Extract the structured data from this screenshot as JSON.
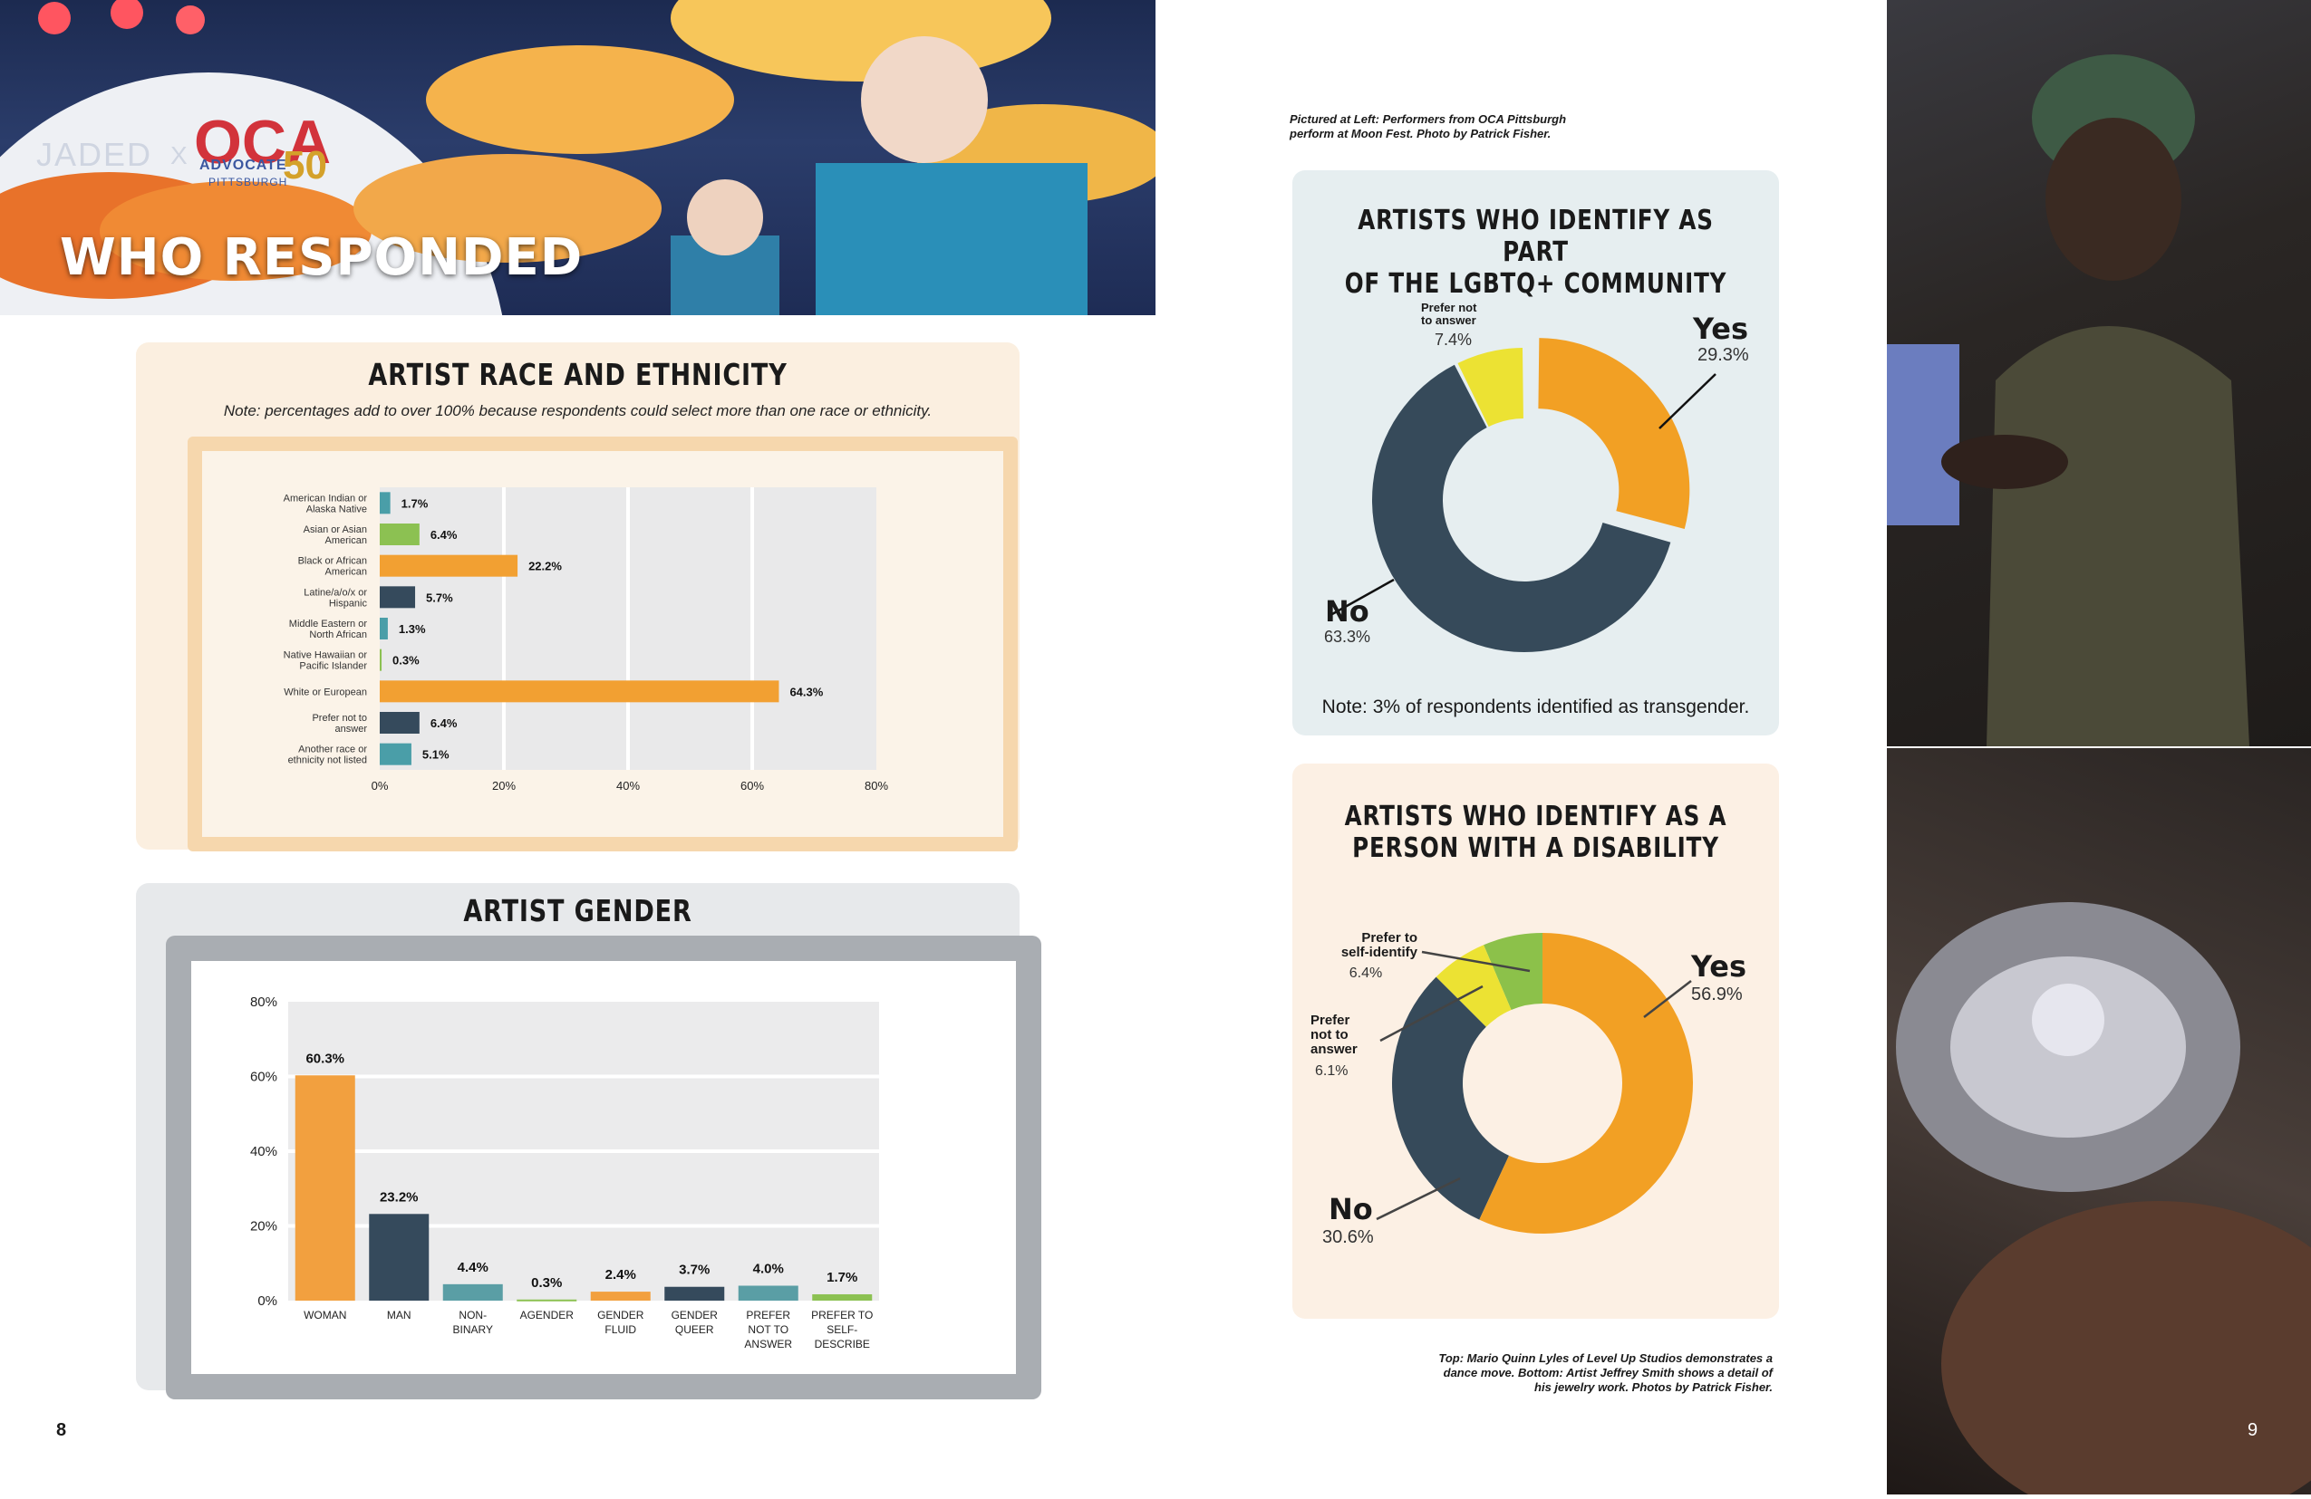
{
  "hero": {
    "title": "WHO RESPONDED",
    "logo_jaded": "JADED",
    "logo_x": "X",
    "logo_oca": "OCA",
    "logo_advocate": "ADVOCATE",
    "logo_pittsburgh": "PITTSBURGH",
    "logo_50": "50"
  },
  "race": {
    "title": "ARTIST RACE AND ETHNICITY",
    "note": "Note: percentages add to over 100% because respondents could select more than one race or ethnicity.",
    "chart_data": {
      "type": "bar",
      "orientation": "horizontal",
      "categories": [
        [
          "American Indian or",
          "Alaska Native"
        ],
        [
          "Asian or Asian",
          "American"
        ],
        [
          "Black or African",
          "American"
        ],
        [
          "Latine/a/o/x or",
          "Hispanic"
        ],
        [
          "Middle Eastern or",
          "North African"
        ],
        [
          "Native Hawaiian or",
          "Pacific Islander"
        ],
        [
          "White or European"
        ],
        [
          "Prefer not to",
          "answer"
        ],
        [
          "Another race or",
          "ethnicity not listed"
        ]
      ],
      "values": [
        1.7,
        6.4,
        22.2,
        5.7,
        1.3,
        0.3,
        64.3,
        6.4,
        5.1
      ],
      "labels": [
        "1.7%",
        "6.4%",
        "22.2%",
        "5.7%",
        "1.3%",
        "0.3%",
        "64.3%",
        "6.4%",
        "5.1%"
      ],
      "colors": [
        "#4a9ea8",
        "#8cc152",
        "#f2a032",
        "#354a5c",
        "#4a9ea8",
        "#8cc152",
        "#f2a032",
        "#354a5c",
        "#4a9ea8"
      ],
      "xlim": [
        0,
        80
      ],
      "xticks": [
        "0%",
        "20%",
        "40%",
        "60%",
        "80%"
      ]
    }
  },
  "gender": {
    "title": "ARTIST GENDER",
    "chart_data": {
      "type": "bar",
      "categories": [
        [
          "WOMAN"
        ],
        [
          "MAN"
        ],
        [
          "NON-",
          "BINARY"
        ],
        [
          "AGENDER"
        ],
        [
          "GENDER",
          "FLUID"
        ],
        [
          "GENDER",
          "QUEER"
        ],
        [
          "PREFER",
          "NOT TO",
          "ANSWER"
        ],
        [
          "PREFER TO",
          "SELF-",
          "DESCRIBE"
        ]
      ],
      "values": [
        60.3,
        23.2,
        4.4,
        0.3,
        2.4,
        3.7,
        4.0,
        1.7
      ],
      "labels": [
        "60.3%",
        "23.2%",
        "4.4%",
        "0.3%",
        "2.4%",
        "3.7%",
        "4.0%",
        "1.7%"
      ],
      "colors": [
        "#f2a03f",
        "#354a5c",
        "#5a9ea5",
        "#8cc152",
        "#f2a03f",
        "#354a5c",
        "#5a9ea5",
        "#8cc152"
      ],
      "ylim": [
        0,
        80
      ],
      "yticks": [
        "0%",
        "20%",
        "40%",
        "60%",
        "80%"
      ]
    }
  },
  "lgbt": {
    "title_line1": "ARTISTS WHO IDENTIFY AS PART",
    "title_line2": "OF THE LGBTQ+ COMMUNITY",
    "note": "Note: 3% of respondents identified as transgender.",
    "chart_data": {
      "type": "pie",
      "style": "donut",
      "slices": [
        {
          "label": "Yes",
          "value": 29.3,
          "color": "#f2a024"
        },
        {
          "label": "No",
          "value": 63.3,
          "color": "#364a5a"
        },
        {
          "label": "Prefer not to answer",
          "value": 7.4,
          "color": "#ece233"
        }
      ]
    },
    "yes_label": "Yes",
    "yes_value": "29.3%",
    "no_label": "No",
    "no_value": "63.3%",
    "pref_line1": "Prefer not",
    "pref_line2": "to answer",
    "pref_value": "7.4%"
  },
  "disability": {
    "title_line1": "ARTISTS WHO IDENTIFY AS A",
    "title_line2": "PERSON WITH A DISABILITY",
    "chart_data": {
      "type": "pie",
      "style": "donut",
      "slices": [
        {
          "label": "Yes",
          "value": 56.9,
          "color": "#f2a024"
        },
        {
          "label": "No",
          "value": 30.6,
          "color": "#364a5a"
        },
        {
          "label": "Prefer not to answer",
          "value": 6.1,
          "color": "#ece233"
        },
        {
          "label": "Prefer to self-identify",
          "value": 6.4,
          "color": "#8cc14a"
        }
      ]
    },
    "yes_label": "Yes",
    "yes_value": "56.9%",
    "no_label": "No",
    "no_value": "30.6%",
    "self_line1": "Prefer to",
    "self_line2": "self-identify",
    "self_value": "6.4%",
    "pna_line1": "Prefer",
    "pna_line2": "not to",
    "pna_line3": "answer",
    "pna_value": "6.1%"
  },
  "captions": {
    "left_line1": "Pictured at Left: Performers from OCA Pittsburgh",
    "left_line2": "perform at Moon Fest. Photo by Patrick Fisher.",
    "bottom_line1": "Top:  Mario Quinn Lyles of Level Up Studios demonstrates a",
    "bottom_line2": "dance move. Bottom: Artist Jeffrey Smith shows a detail of",
    "bottom_line3": "his jewelry work. Photos by Patrick Fisher."
  },
  "page_numbers": {
    "left": "8",
    "right": "9"
  }
}
